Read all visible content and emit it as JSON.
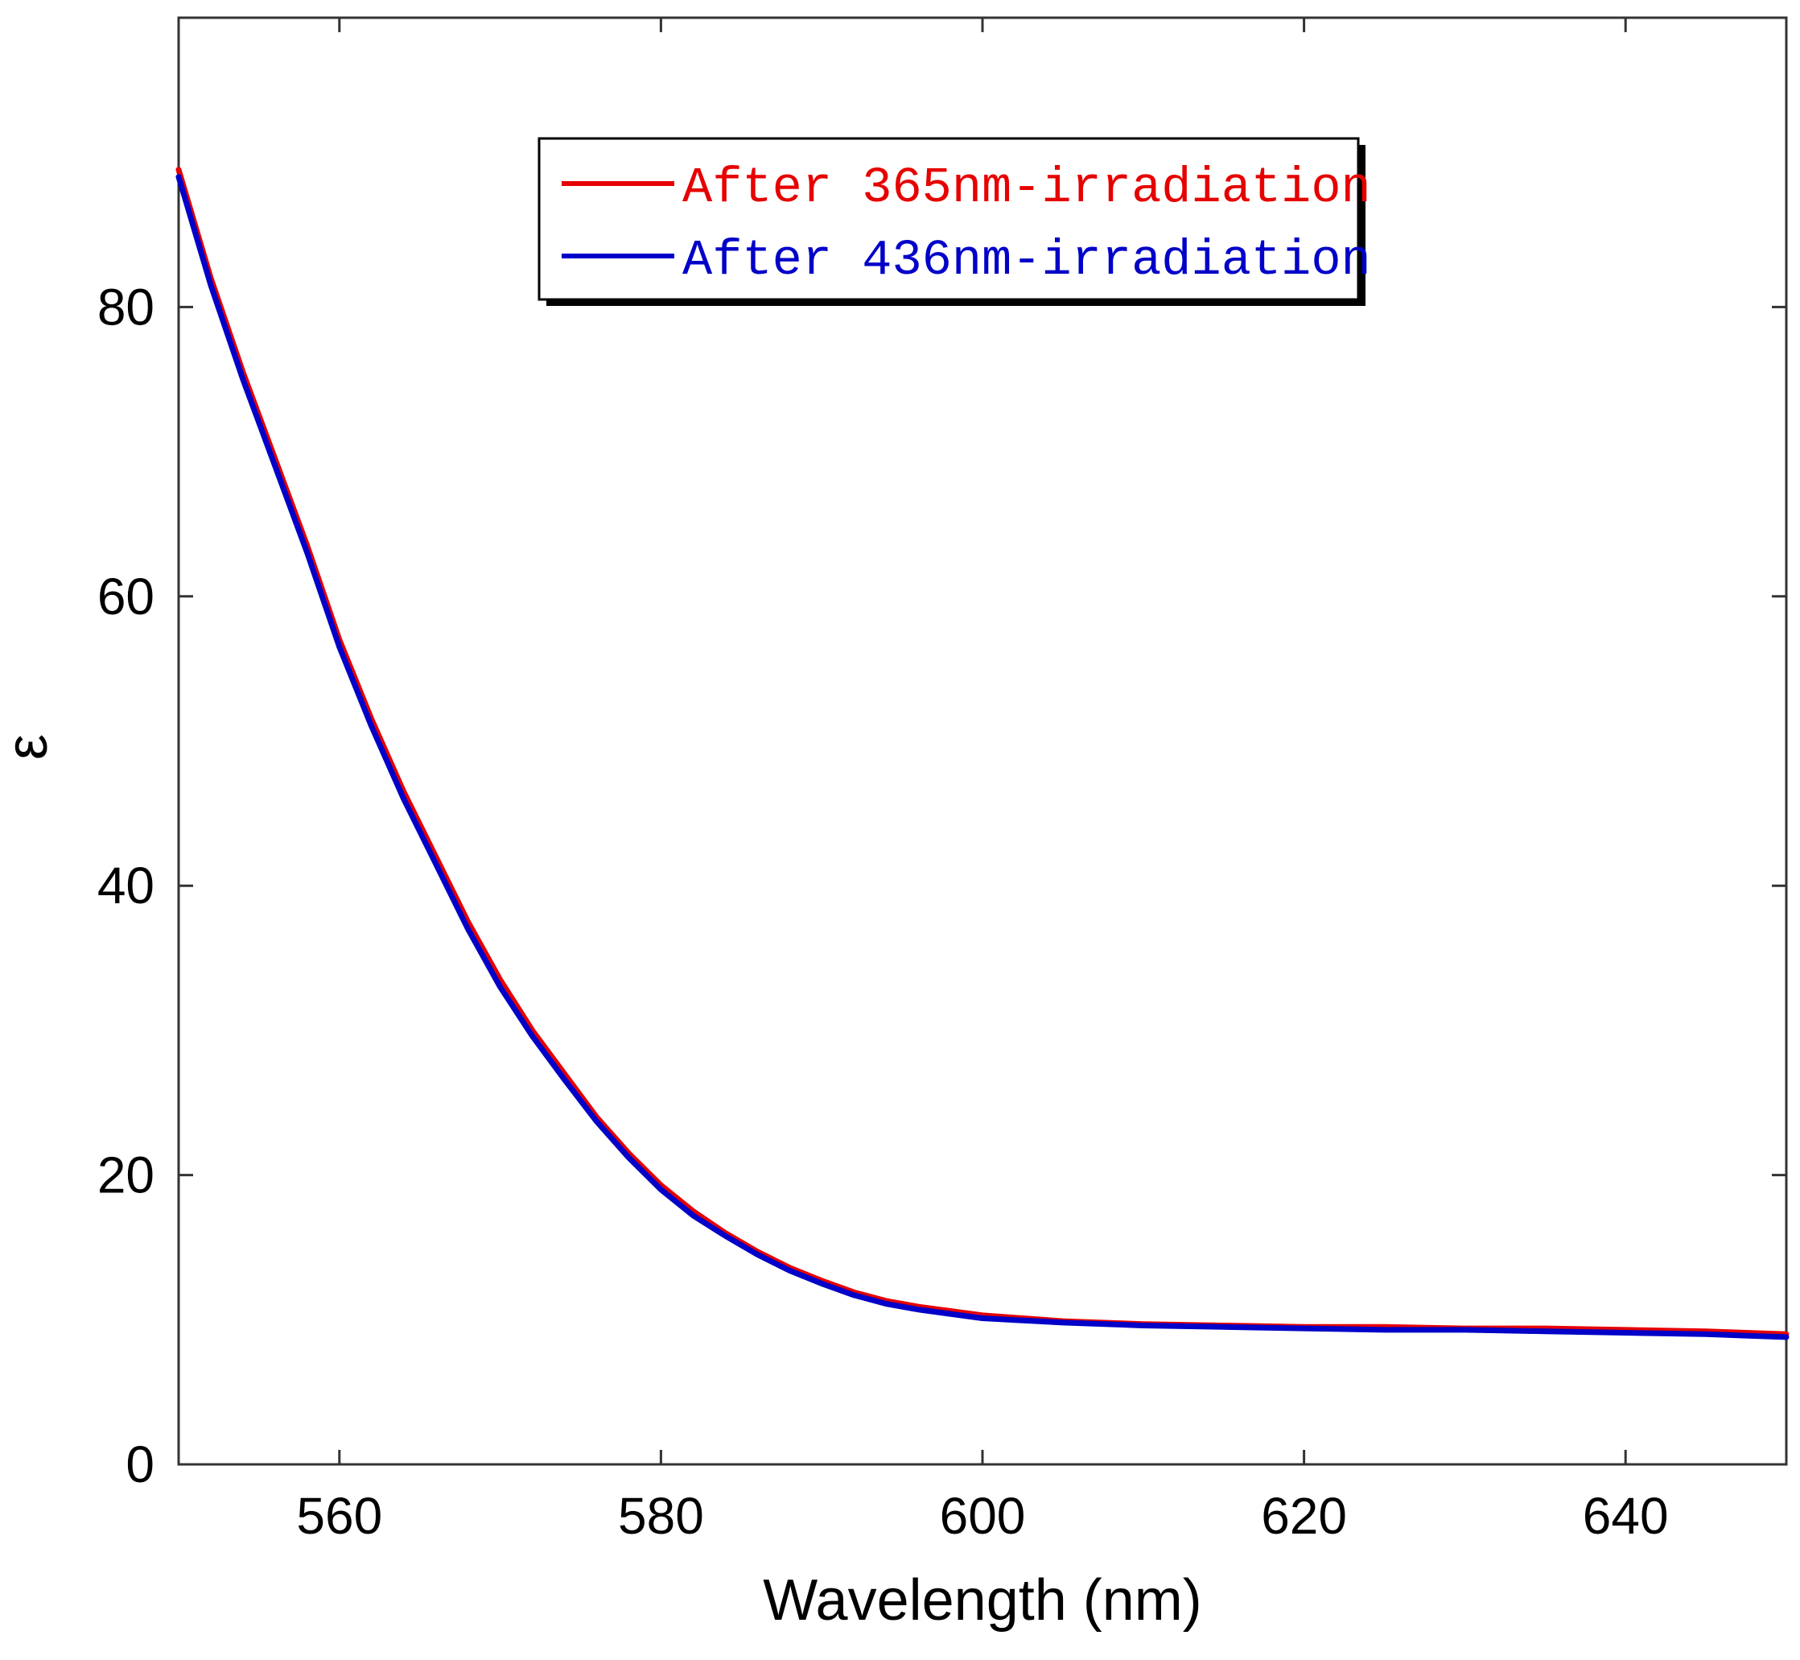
{
  "chart_data": {
    "type": "line",
    "title": "",
    "xlabel": "Wavelength (nm)",
    "ylabel": "ε",
    "xlim": [
      550,
      650
    ],
    "ylim": [
      0,
      100
    ],
    "x_ticks": [
      560,
      580,
      600,
      620,
      640
    ],
    "y_ticks": [
      0,
      20,
      40,
      60,
      80
    ],
    "grid": false,
    "legend_position": "top-center",
    "series": [
      {
        "name": "After 365nm-irradiation",
        "color": "#e60000",
        "x": [
          550,
          552,
          554,
          556,
          558,
          560,
          562,
          564,
          566,
          568,
          570,
          572,
          574,
          576,
          578,
          580,
          582,
          584,
          586,
          588,
          590,
          592,
          594,
          596,
          598,
          600,
          605,
          610,
          615,
          620,
          625,
          630,
          635,
          640,
          645,
          650
        ],
        "y": [
          89.5,
          82.0,
          75.5,
          69.5,
          63.5,
          57.0,
          51.5,
          46.5,
          42.0,
          37.5,
          33.5,
          30.0,
          27.0,
          24.0,
          21.5,
          19.3,
          17.5,
          16.0,
          14.7,
          13.6,
          12.7,
          11.9,
          11.3,
          10.9,
          10.6,
          10.3,
          9.9,
          9.7,
          9.6,
          9.5,
          9.5,
          9.4,
          9.4,
          9.3,
          9.2,
          9.0
        ]
      },
      {
        "name": "After 436nm-irradiation",
        "color": "#0000c8",
        "x": [
          550,
          552,
          554,
          556,
          558,
          560,
          562,
          564,
          566,
          568,
          570,
          572,
          574,
          576,
          578,
          580,
          582,
          584,
          586,
          588,
          590,
          592,
          594,
          596,
          598,
          600,
          605,
          610,
          615,
          620,
          625,
          630,
          635,
          640,
          645,
          650
        ],
        "y": [
          89.0,
          81.5,
          75.0,
          69.0,
          63.0,
          56.5,
          51.0,
          46.0,
          41.5,
          37.0,
          33.0,
          29.6,
          26.6,
          23.7,
          21.2,
          19.0,
          17.2,
          15.8,
          14.5,
          13.4,
          12.5,
          11.7,
          11.1,
          10.7,
          10.4,
          10.1,
          9.8,
          9.6,
          9.5,
          9.4,
          9.3,
          9.3,
          9.2,
          9.1,
          9.0,
          8.8
        ]
      }
    ]
  }
}
